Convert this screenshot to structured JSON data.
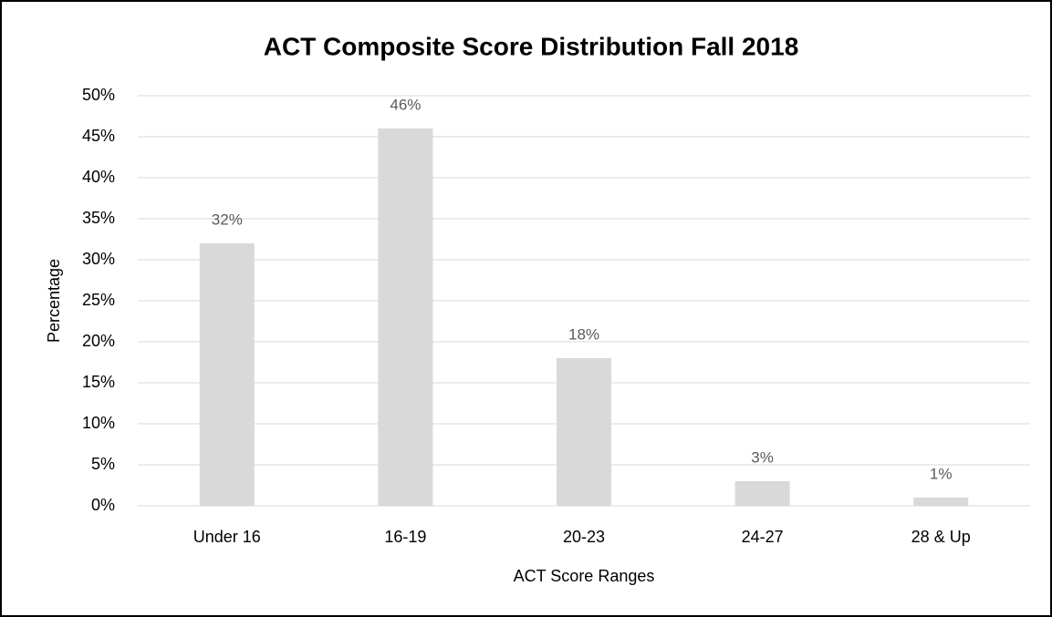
{
  "chart_data": {
    "type": "bar",
    "title": "ACT Composite Score Distribution Fall 2018",
    "x_label": "ACT Score Ranges",
    "y_label": "Percentage",
    "categories": [
      "Under 16",
      "16-19",
      "20-23",
      "24-27",
      "28 & Up"
    ],
    "values": [
      32,
      46,
      18,
      3,
      1
    ],
    "value_labels": [
      "32%",
      "46%",
      "18%",
      "3%",
      "1%"
    ],
    "color": "#d9d9d9",
    "ylim": [
      0,
      50
    ],
    "yticks": [
      {
        "value": 0,
        "label": "0%"
      },
      {
        "value": 5,
        "label": "5%"
      },
      {
        "value": 10,
        "label": "10%"
      },
      {
        "value": 15,
        "label": "15%"
      },
      {
        "value": 20,
        "label": "20%"
      },
      {
        "value": 25,
        "label": "25%"
      },
      {
        "value": 30,
        "label": "30%"
      },
      {
        "value": 35,
        "label": "35%"
      },
      {
        "value": 40,
        "label": "40%"
      },
      {
        "value": 45,
        "label": "45%"
      },
      {
        "value": 50,
        "label": "50%"
      }
    ],
    "grid": true
  }
}
